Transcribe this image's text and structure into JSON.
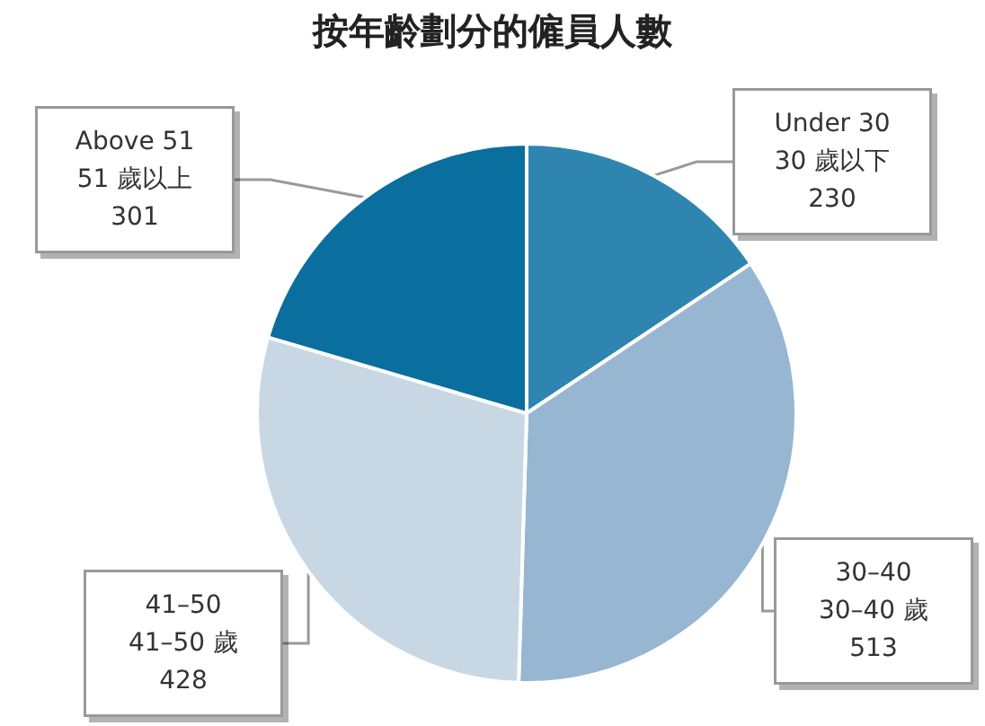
{
  "chart_data": {
    "type": "pie",
    "title": "按年齡劃分的僱員人數",
    "categories": [
      "Under 30\n30 歲以下",
      "30–40\n30–40 歲",
      "41–50\n41–50 歲",
      "Above 51\n51 歲以上"
    ],
    "values": [
      230,
      513,
      428,
      301
    ],
    "colors": [
      "#2e86b0",
      "#97b6d1",
      "#c8d7e4",
      "#0a6e9e"
    ],
    "data_labels": true
  }
}
